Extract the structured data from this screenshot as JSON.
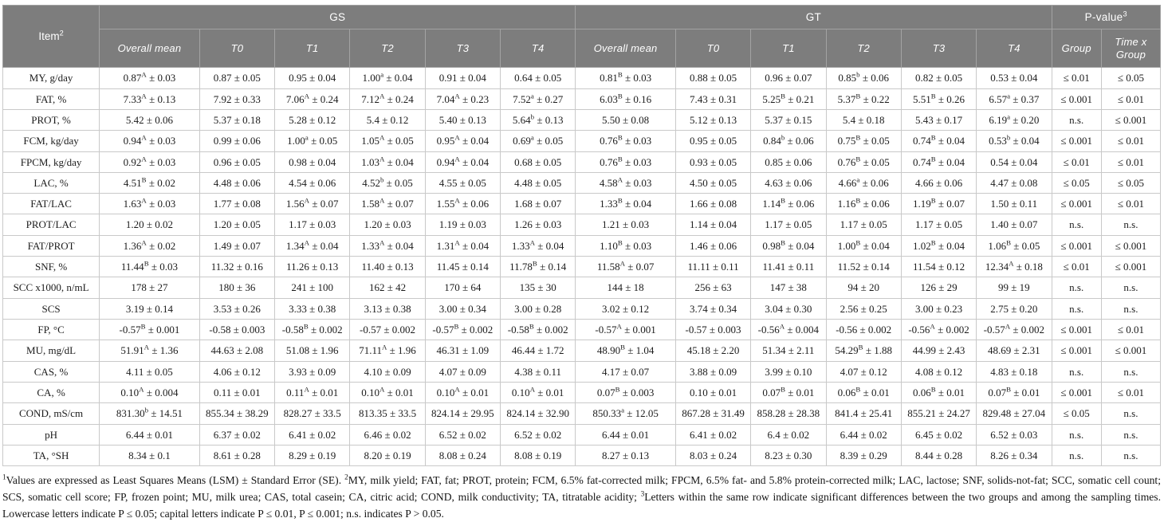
{
  "table": {
    "header": {
      "item_label": "Item",
      "item_sup": "2",
      "gs_label": "GS",
      "gt_label": "GT",
      "pvalue_label": "P-value",
      "pvalue_sup": "3",
      "subcols": [
        "Overall mean",
        "T0",
        "T1",
        "T2",
        "T3",
        "T4"
      ],
      "pvalue_subcols": [
        "Group",
        "Time x Group"
      ]
    },
    "rows": [
      {
        "item": "MY, g/day",
        "cells": [
          "0.87^A ± 0.03",
          "0.87 ± 0.05",
          "0.95 ± 0.04",
          "1.00^a ± 0.04",
          "0.91 ± 0.04",
          "0.64 ± 0.05",
          "0.81^B ± 0.03",
          "0.88 ± 0.05",
          "0.96 ± 0.07",
          "0.85^b ± 0.06",
          "0.82 ± 0.05",
          "0.53 ± 0.04",
          "≤ 0.01",
          "≤ 0.05"
        ]
      },
      {
        "item": "FAT, %",
        "cells": [
          "7.33^A ± 0.13",
          "7.92 ± 0.33",
          "7.06^A ± 0.24",
          "7.12^A ± 0.24",
          "7.04^A ± 0.23",
          "7.52^a ± 0.27",
          "6.03^B ± 0.16",
          "7.43 ± 0.31",
          "5.25^B ± 0.21",
          "5.37^B ± 0.22",
          "5.51^B ± 0.26",
          "6.57^a ± 0.37",
          "≤ 0.001",
          "≤ 0.01"
        ]
      },
      {
        "item": "PROT, %",
        "cells": [
          "5.42 ± 0.06",
          "5.37 ± 0.18",
          "5.28 ± 0.12",
          "5.4 ± 0.12",
          "5.40 ± 0.13",
          "5.64^b ± 0.13",
          "5.50 ± 0.08",
          "5.12 ± 0.13",
          "5.37 ± 0.15",
          "5.4 ± 0.18",
          "5.43 ± 0.17",
          "6.19^a ± 0.20",
          "n.s.",
          "≤ 0.001"
        ]
      },
      {
        "item": "FCM, kg/day",
        "cells": [
          "0.94^A ± 0.03",
          "0.99 ± 0.06",
          "1.00^a ± 0.05",
          "1.05^A ± 0.05",
          "0.95^A ± 0.04",
          "0.69^a ± 0.05",
          "0.76^B ± 0.03",
          "0.95 ± 0.05",
          "0.84^b ± 0.06",
          "0.75^B ± 0.05",
          "0.74^B ± 0.04",
          "0.53^b ± 0.04",
          "≤ 0.001",
          "≤ 0.01"
        ]
      },
      {
        "item": "FPCM, kg/day",
        "cells": [
          "0.92^A ± 0.03",
          "0.96 ± 0.05",
          "0.98 ± 0.04",
          "1.03^A ± 0.04",
          "0.94^A ± 0.04",
          "0.68 ± 0.05",
          "0.76^B ± 0.03",
          "0.93 ± 0.05",
          "0.85 ± 0.06",
          "0.76^B ± 0.05",
          "0.74^B ± 0.04",
          "0.54 ± 0.04",
          "≤ 0.01",
          "≤ 0.01"
        ]
      },
      {
        "item": "LAC, %",
        "cells": [
          "4.51^B ± 0.02",
          "4.48 ± 0.06",
          "4.54 ± 0.06",
          "4.52^b ± 0.05",
          "4.55 ± 0.05",
          "4.48 ± 0.05",
          "4.58^A ± 0.03",
          "4.50 ± 0.05",
          "4.63 ± 0.06",
          "4.66^a ± 0.06",
          "4.66 ± 0.06",
          "4.47 ± 0.08",
          "≤ 0.05",
          "≤ 0.05"
        ]
      },
      {
        "item": "FAT/LAC",
        "cells": [
          "1.63^A ± 0.03",
          "1.77 ± 0.08",
          "1.56^A ± 0.07",
          "1.58^A ± 0.07",
          "1.55^A ± 0.06",
          "1.68 ± 0.07",
          "1.33^B ± 0.04",
          "1.66 ± 0.08",
          "1.14^B ± 0.06",
          "1.16^B ± 0.06",
          "1.19^B ± 0.07",
          "1.50 ± 0.11",
          "≤ 0.001",
          "≤ 0.01"
        ]
      },
      {
        "item": "PROT/LAC",
        "cells": [
          "1.20 ± 0.02",
          "1.20 ± 0.05",
          "1.17 ± 0.03",
          "1.20 ± 0.03",
          "1.19 ± 0.03",
          "1.26 ± 0.03",
          "1.21 ± 0.03",
          "1.14 ± 0.04",
          "1.17 ± 0.05",
          "1.17 ± 0.05",
          "1.17 ± 0.05",
          "1.40 ± 0.07",
          "n.s.",
          "n.s."
        ]
      },
      {
        "item": "FAT/PROT",
        "cells": [
          "1.36^A ± 0.02",
          "1.49 ± 0.07",
          "1.34^A ± 0.04",
          "1.33^A ± 0.04",
          "1.31^A ± 0.04",
          "1.33^A ± 0.04",
          "1.10^B ± 0.03",
          "1.46 ± 0.06",
          "0.98^B ± 0.04",
          "1.00^B ± 0.04",
          "1.02^B ± 0.04",
          "1.06^B ± 0.05",
          "≤ 0.001",
          "≤ 0.001"
        ]
      },
      {
        "item": "SNF, %",
        "cells": [
          "11.44^B ± 0.03",
          "11.32 ± 0.16",
          "11.26 ± 0.13",
          "11.40 ± 0.13",
          "11.45 ± 0.14",
          "11.78^B ± 0.14",
          "11.58^A ± 0.07",
          "11.11 ± 0.11",
          "11.41 ± 0.11",
          "11.52 ± 0.14",
          "11.54 ± 0.12",
          "12.34^A ± 0.18",
          "≤ 0.01",
          "≤ 0.001"
        ]
      },
      {
        "item": "SCC x1000, n/mL",
        "cells": [
          "178 ± 27",
          "180 ± 36",
          "241 ± 100",
          "162 ± 42",
          "170 ± 64",
          "135 ± 30",
          "144 ± 18",
          "256 ± 63",
          "147 ± 38",
          "94 ± 20",
          "126 ± 29",
          "99 ± 19",
          "n.s.",
          "n.s."
        ]
      },
      {
        "item": "SCS",
        "cells": [
          "3.19 ± 0.14",
          "3.53 ± 0.26",
          "3.33 ± 0.38",
          "3.13 ± 0.38",
          "3.00 ± 0.34",
          "3.00 ± 0.28",
          "3.02 ± 0.12",
          "3.74 ± 0.34",
          "3.04 ± 0.30",
          "2.56 ± 0.25",
          "3.00 ± 0.23",
          "2.75 ± 0.20",
          "n.s.",
          "n.s."
        ]
      },
      {
        "item": "FP, °C",
        "cells": [
          "-0.57^B ± 0.001",
          "-0.58 ± 0.003",
          "-0.58^B ± 0.002",
          "-0.57 ± 0.002",
          "-0.57^B ± 0.002",
          "-0.58^B ± 0.002",
          "-0.57^A ± 0.001",
          "-0.57 ± 0.003",
          "-0.56^A ± 0.004",
          "-0.56 ± 0.002",
          "-0.56^A ± 0.002",
          "-0.57^A ± 0.002",
          "≤ 0.001",
          "≤ 0.01"
        ]
      },
      {
        "item": "MU, mg/dL",
        "cells": [
          "51.91^A ± 1.36",
          "44.63 ± 2.08",
          "51.08 ± 1.96",
          "71.11^A ± 1.96",
          "46.31 ± 1.09",
          "46.44 ± 1.72",
          "48.90^B ± 1.04",
          "45.18 ± 2.20",
          "51.34 ± 2.11",
          "54.29^B ± 1.88",
          "44.99 ± 2.43",
          "48.69 ± 2.31",
          "≤ 0.001",
          "≤ 0.001"
        ]
      },
      {
        "item": "CAS, %",
        "cells": [
          "4.11 ± 0.05",
          "4.06 ± 0.12",
          "3.93 ± 0.09",
          "4.10 ± 0.09",
          "4.07 ± 0.09",
          "4.38 ± 0.11",
          "4.17 ± 0.07",
          "3.88 ± 0.09",
          "3.99 ± 0.10",
          "4.07 ± 0.12",
          "4.08 ± 0.12",
          "4.83 ± 0.18",
          "n.s.",
          "n.s."
        ]
      },
      {
        "item": "CA, %",
        "cells": [
          "0.10^A ± 0.004",
          "0.11 ± 0.01",
          "0.11^A ± 0.01",
          "0.10^A ± 0.01",
          "0.10^A ± 0.01",
          "0.10^A ± 0.01",
          "0.07^B ± 0.003",
          "0.10 ± 0.01",
          "0.07^B ± 0.01",
          "0.06^B ± 0.01",
          "0.06^B ± 0.01",
          "0.07^B ± 0.01",
          "≤ 0.001",
          "≤ 0.01"
        ]
      },
      {
        "item": "COND, mS/cm",
        "cells": [
          "831.30^b ± 14.51",
          "855.34 ± 38.29",
          "828.27 ± 33.5",
          "813.35 ± 33.5",
          "824.14 ± 29.95",
          "824.14 ± 32.90",
          "850.33^a ± 12.05",
          "867.28 ± 31.49",
          "858.28 ± 28.38",
          "841.4 ± 25.41",
          "855.21 ± 24.27",
          "829.48 ± 27.04",
          "≤ 0.05",
          "n.s."
        ]
      },
      {
        "item": "pH",
        "cells": [
          "6.44 ± 0.01",
          "6.37 ± 0.02",
          "6.41 ± 0.02",
          "6.46 ± 0.02",
          "6.52 ± 0.02",
          "6.52 ± 0.02",
          "6.44 ± 0.01",
          "6.41 ± 0.02",
          "6.4 ± 0.02",
          "6.44 ± 0.02",
          "6.45 ± 0.02",
          "6.52 ± 0.03",
          "n.s.",
          "n.s."
        ]
      },
      {
        "item": "TA, °SH",
        "cells": [
          "8.34 ± 0.1",
          "8.61 ± 0.28",
          "8.29 ± 0.19",
          "8.20 ± 0.19",
          "8.08 ± 0.24",
          "8.08 ± 0.19",
          "8.27 ± 0.13",
          "8.03 ± 0.24",
          "8.23 ± 0.30",
          "8.39 ± 0.29",
          "8.44 ± 0.28",
          "8.26 ± 0.34",
          "n.s.",
          "n.s."
        ]
      }
    ]
  },
  "footnote": {
    "segments": [
      {
        "sup": "1"
      },
      {
        "text": "Values are expressed as Least Squares Means (LSM) ± Standard Error (SE). "
      },
      {
        "sup": "2"
      },
      {
        "text": "MY, milk yield; FAT, fat; PROT, protein; FCM, 6.5% fat-corrected milk; FPCM, 6.5% fat- and 5.8% protein-corrected milk; LAC, lactose; SNF, solids-not-fat; SCC, somatic cell count; SCS, somatic cell score; FP, frozen point; MU, milk urea; CAS, total casein; CA, citric acid; COND, milk conductivity; TA, titratable acidity; "
      },
      {
        "sup": "3"
      },
      {
        "text": "Letters within the same row indicate significant differences between the two groups and among the sampling times. Lowercase letters indicate P ≤ 0.05; capital letters indicate P ≤ 0.01, P ≤ 0.001; n.s. indicates P > 0.05."
      }
    ]
  },
  "colors": {
    "header_bg": "#7d7d7d",
    "header_text": "#ffffff",
    "header_border": "#a3a3a3",
    "body_border": "#c9c9c9",
    "body_text": "#1c1c1c"
  }
}
